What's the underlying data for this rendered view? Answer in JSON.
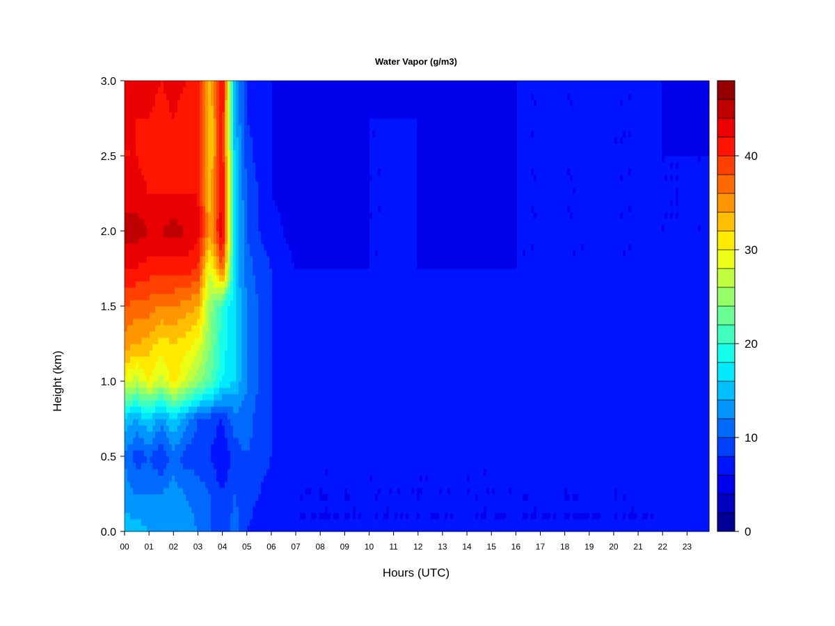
{
  "chart_data": {
    "type": "heatmap",
    "title": "Water Vapor (g/m3)",
    "xlabel": "Hours (UTC)",
    "ylabel": "Height (km)",
    "xlim": [
      0,
      23.9
    ],
    "ylim": [
      0,
      3.0
    ],
    "x_ticks": [
      "00",
      "01",
      "02",
      "03",
      "04",
      "05",
      "06",
      "07",
      "08",
      "09",
      "10",
      "11",
      "12",
      "13",
      "14",
      "15",
      "16",
      "17",
      "18",
      "19",
      "20",
      "21",
      "22",
      "23"
    ],
    "y_ticks": [
      "0.0",
      "0.5",
      "1.0",
      "1.5",
      "2.0",
      "2.5",
      "3.0"
    ],
    "heights_km": [
      0.0,
      0.25,
      0.5,
      0.75,
      1.0,
      1.25,
      1.5,
      1.75,
      2.0,
      2.25,
      2.5,
      2.75,
      3.0
    ],
    "hours": [
      0,
      0.5,
      1,
      1.5,
      2,
      2.5,
      3,
      3.5,
      4,
      4.5,
      5,
      5.5,
      6,
      7,
      8,
      9,
      10,
      12,
      14,
      16,
      18,
      20,
      22,
      23.9
    ],
    "values_by_height": [
      [
        15,
        15,
        14,
        14,
        14,
        13,
        12,
        10,
        9,
        11,
        8,
        7,
        6,
        6,
        6,
        6,
        6,
        6,
        6,
        6,
        6,
        6,
        6,
        7
      ],
      [
        13,
        12,
        12,
        12,
        13,
        12,
        11,
        10,
        8,
        10,
        9,
        8,
        7,
        6,
        6,
        6,
        6,
        6,
        6,
        6,
        6,
        6,
        6,
        7
      ],
      [
        12,
        9,
        10,
        8,
        11,
        9,
        9,
        8,
        6,
        9,
        10,
        9,
        8,
        6,
        6,
        6,
        6,
        6,
        6,
        6,
        6,
        6,
        6,
        7
      ],
      [
        15,
        14,
        16,
        13,
        16,
        13,
        10,
        9,
        8,
        11,
        11,
        9,
        8,
        7,
        7,
        7,
        7,
        7,
        7,
        7,
        7,
        7,
        7,
        8
      ],
      [
        29,
        27,
        30,
        27,
        31,
        28,
        25,
        22,
        18,
        16,
        12,
        10,
        8,
        7,
        7,
        7,
        7,
        7,
        7,
        7,
        7,
        7,
        7,
        8
      ],
      [
        35,
        34,
        33,
        31,
        32,
        31,
        29,
        24,
        19,
        16,
        12,
        10,
        8,
        7,
        7,
        7,
        7,
        7,
        7,
        7,
        7,
        7,
        7,
        8
      ],
      [
        38,
        37,
        37,
        36,
        36,
        35,
        34,
        25,
        20,
        16,
        12,
        10,
        8,
        7,
        7,
        7,
        7,
        7,
        7,
        7,
        7,
        7,
        7,
        8
      ],
      [
        42,
        42,
        41,
        41,
        41,
        41,
        40,
        28,
        38,
        16,
        11,
        9,
        8,
        6,
        6,
        6,
        6,
        6,
        6,
        6,
        6,
        6,
        6,
        7
      ],
      [
        45,
        45,
        44,
        44,
        45,
        44,
        43,
        34,
        44,
        17,
        10,
        8,
        7,
        5,
        4,
        5,
        6,
        6,
        5,
        6,
        6,
        6,
        6,
        6
      ],
      [
        43,
        43,
        42,
        42,
        42,
        42,
        42,
        33,
        43,
        16,
        10,
        8,
        6,
        5,
        5,
        5,
        6,
        6,
        5,
        6,
        6,
        6,
        6,
        6
      ],
      [
        42,
        42,
        41,
        41,
        41,
        41,
        41,
        32,
        42,
        16,
        9,
        7,
        6,
        4,
        4,
        5,
        6,
        6,
        5,
        6,
        6,
        6,
        6,
        6
      ],
      [
        42,
        42,
        42,
        41,
        42,
        41,
        41,
        32,
        42,
        15,
        8,
        7,
        6,
        4,
        4,
        5,
        6,
        6,
        5,
        6,
        6,
        6,
        6,
        5
      ],
      [
        43,
        43,
        43,
        42,
        43,
        42,
        42,
        33,
        43,
        15,
        8,
        7,
        6,
        4,
        5,
        5,
        5,
        6,
        5,
        6,
        6,
        6,
        6,
        5
      ]
    ],
    "colorbar": {
      "min": 0,
      "max": 48,
      "step": 2,
      "ticks": [
        "0",
        "10",
        "20",
        "30",
        "40"
      ]
    },
    "grid": false,
    "legend": "colorbar-right"
  }
}
